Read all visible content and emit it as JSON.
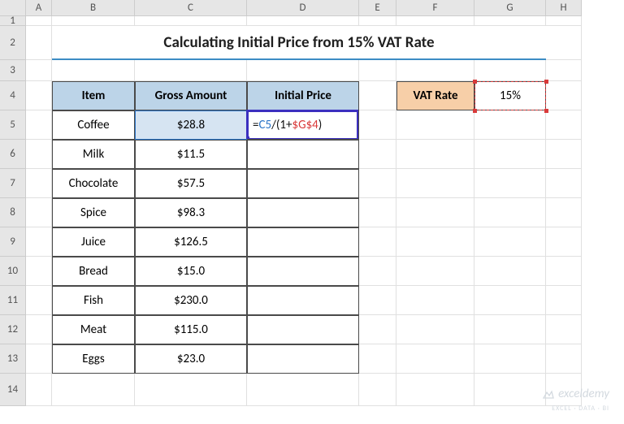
{
  "columns": [
    {
      "letter": "A",
      "width": 32
    },
    {
      "letter": "B",
      "width": 102
    },
    {
      "letter": "C",
      "width": 138
    },
    {
      "letter": "D",
      "width": 138
    },
    {
      "letter": "E",
      "width": 46
    },
    {
      "letter": "F",
      "width": 96
    },
    {
      "letter": "G",
      "width": 88
    },
    {
      "letter": "H",
      "width": 44
    }
  ],
  "rows": [
    {
      "n": 1,
      "h": 12
    },
    {
      "n": 2,
      "h": 42
    },
    {
      "n": 3,
      "h": 26
    },
    {
      "n": 4,
      "h": 36
    },
    {
      "n": 5,
      "h": 36
    },
    {
      "n": 6,
      "h": 36
    },
    {
      "n": 7,
      "h": 36
    },
    {
      "n": 8,
      "h": 36
    },
    {
      "n": 9,
      "h": 36
    },
    {
      "n": 10,
      "h": 36
    },
    {
      "n": 11,
      "h": 36
    },
    {
      "n": 12,
      "h": 36
    },
    {
      "n": 13,
      "h": 36
    },
    {
      "n": 14,
      "h": 40
    }
  ],
  "title": "Calculating Initial Price from 15% VAT Rate",
  "headers": {
    "item": "Item",
    "gross": "Gross Amount",
    "initial": "Initial Price"
  },
  "vat": {
    "label": "VAT Rate",
    "value": "15%"
  },
  "items": [
    {
      "name": "Coffee",
      "gross": "$28.8"
    },
    {
      "name": "Milk",
      "gross": "$11.5"
    },
    {
      "name": "Chocolate",
      "gross": "$57.5"
    },
    {
      "name": "Spice",
      "gross": "$98.3"
    },
    {
      "name": "Juice",
      "gross": "$126.5"
    },
    {
      "name": "Bread",
      "gross": "$15.0"
    },
    {
      "name": "Fish",
      "gross": "$230.0"
    },
    {
      "name": "Meat",
      "gross": "$115.0"
    },
    {
      "name": "Eggs",
      "gross": "$23.0"
    }
  ],
  "formula": {
    "parts": [
      {
        "t": "=",
        "c": "fc-black"
      },
      {
        "t": "C5",
        "c": "fc-blue"
      },
      {
        "t": "/(1+",
        "c": "fc-black"
      },
      {
        "t": "$G$4",
        "c": "fc-red"
      },
      {
        "t": ")",
        "c": "fc-black"
      }
    ]
  },
  "watermark": "exceldemy",
  "watermark_sub": "EXCEL · DATA · BI",
  "colors": {
    "header_bg": "#e6e6e6",
    "grid": "#e0e0e0",
    "title_underline": "#3c8cc4",
    "table_header_bg": "#bcd4e8",
    "table_border": "#4a4a4a",
    "vat_label_bg": "#f7cfa8",
    "c5_highlight_border": "#2a74c8",
    "c5_highlight_bg": "#d6e4f2",
    "d5_border": "#3b2fbf",
    "g4_dash": "#d93a3a",
    "formula_blue": "#2a74c8",
    "formula_red": "#d93a3a"
  }
}
